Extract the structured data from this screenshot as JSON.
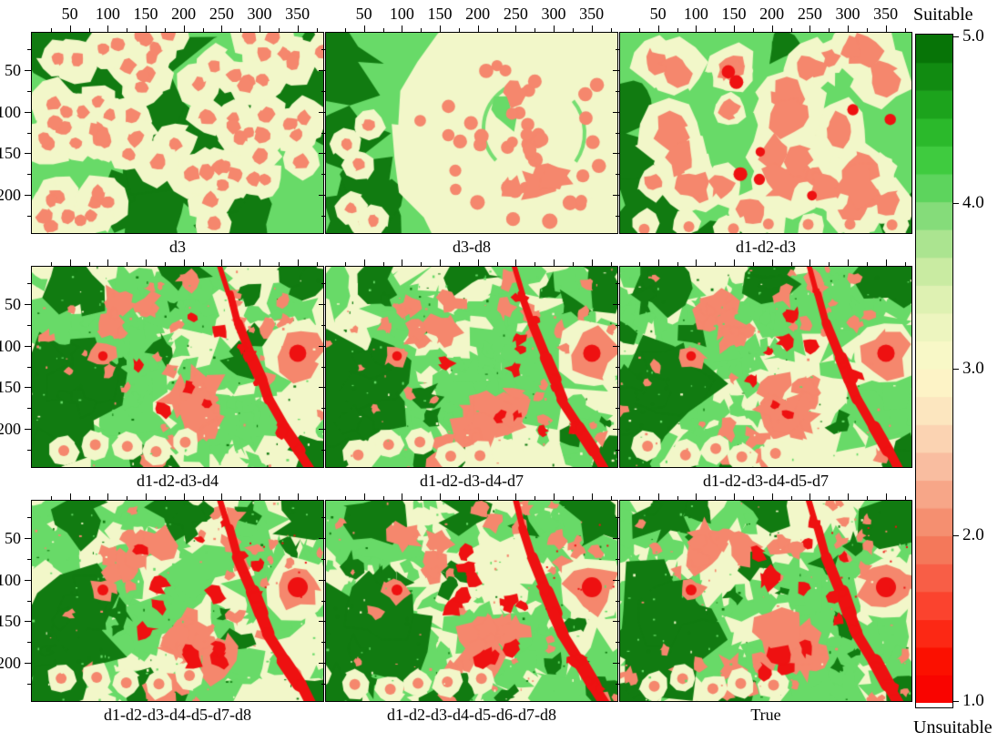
{
  "colorbar": {
    "title_top": "Suitable",
    "title_bottom": "Unsuitable",
    "tick_labels": [
      "5.0",
      "4.0",
      "3.0",
      "2.0",
      "1.0"
    ]
  },
  "chart_data": {
    "type": "heatmap",
    "title": "",
    "description": "3x3 grid of suitability map rasters compared against the True map; values 1 (Unsuitable, red) to 5 (Suitable, dark green)",
    "value_range": [
      1,
      5
    ],
    "x_axis": {
      "major_ticks": [
        50,
        100,
        150,
        200,
        250,
        300,
        350
      ],
      "minor_step": 25,
      "minor_max": 375,
      "data_max": 384,
      "labels_shown_on": "top row"
    },
    "y_axis": {
      "major_ticks": [
        50,
        100,
        150,
        200
      ],
      "minor_step": 25,
      "minor_max": 225,
      "data_max": 241,
      "data_offset": 5,
      "labels_shown_on": "left column"
    },
    "grid_labels": [
      [
        "d3",
        "d3-d8",
        "d1-d2-d3"
      ],
      [
        "d1-d2-d3-d4",
        "d1-d2-d3-d4-d7",
        "d1-d2-d3-d4-d5-d7"
      ],
      [
        "d1-d2-d3-d4-d5-d7-d8",
        "d1-d2-d3-d4-d5-d6-d7-d8",
        "True"
      ]
    ],
    "panels": [
      {
        "label": "d3",
        "row": 0,
        "col": 0,
        "style": "halo",
        "seed": 11,
        "red_boost": 0
      },
      {
        "label": "d3-d8",
        "row": 0,
        "col": 1,
        "style": "bigpale",
        "seed": 7,
        "red_boost": 0
      },
      {
        "label": "d1-d2-d3",
        "row": 0,
        "col": 2,
        "style": "mixed",
        "seed": 13,
        "red_boost": 0.5
      },
      {
        "label": "d1-d2-d3-d4",
        "row": 1,
        "col": 0,
        "style": "detailed",
        "seed": 21,
        "red_boost": 0.6
      },
      {
        "label": "d1-d2-d3-d4-d7",
        "row": 1,
        "col": 1,
        "style": "detailed",
        "seed": 22,
        "red_boost": 0.65
      },
      {
        "label": "d1-d2-d3-d4-d5-d7",
        "row": 1,
        "col": 2,
        "style": "detailed",
        "seed": 23,
        "red_boost": 0.65
      },
      {
        "label": "d1-d2-d3-d4-d5-d7-d8",
        "row": 2,
        "col": 0,
        "style": "detailed",
        "seed": 31,
        "red_boost": 1
      },
      {
        "label": "d1-d2-d3-d4-d5-d6-d7-d8",
        "row": 2,
        "col": 1,
        "style": "detailed",
        "seed": 32,
        "red_boost": 1
      },
      {
        "label": "True",
        "row": 2,
        "col": 2,
        "style": "detailed",
        "seed": 33,
        "red_boost": 1
      }
    ],
    "palette": {
      "dark_green": "#117b11",
      "green": "#68da68",
      "pale": "#f2f7c9",
      "salmon": "#f5876d",
      "red": "#ee1111"
    },
    "colorbar": {
      "orientation": "vertical",
      "segments": 24,
      "ticks": [
        5.0,
        4.0,
        3.0,
        2.0,
        1.0
      ],
      "top_label": "Suitable",
      "bottom_label": "Unsuitable",
      "colors_bottom_to_top": [
        "#f90400",
        "#fb1000",
        "#fc2814",
        "#fb432e",
        "#f85e46",
        "#f4785a",
        "#f58f70",
        "#f7a688",
        "#f9bda0",
        "#fbd3b2",
        "#fce6bf",
        "#fdf3c6",
        "#f8f8c7",
        "#edf5bf",
        "#def1b2",
        "#c9eba2",
        "#abe490",
        "#85dc7a",
        "#5dd45d",
        "#3fcb3f",
        "#2bb92b",
        "#1ca31c",
        "#118b11",
        "#077407"
      ]
    }
  }
}
